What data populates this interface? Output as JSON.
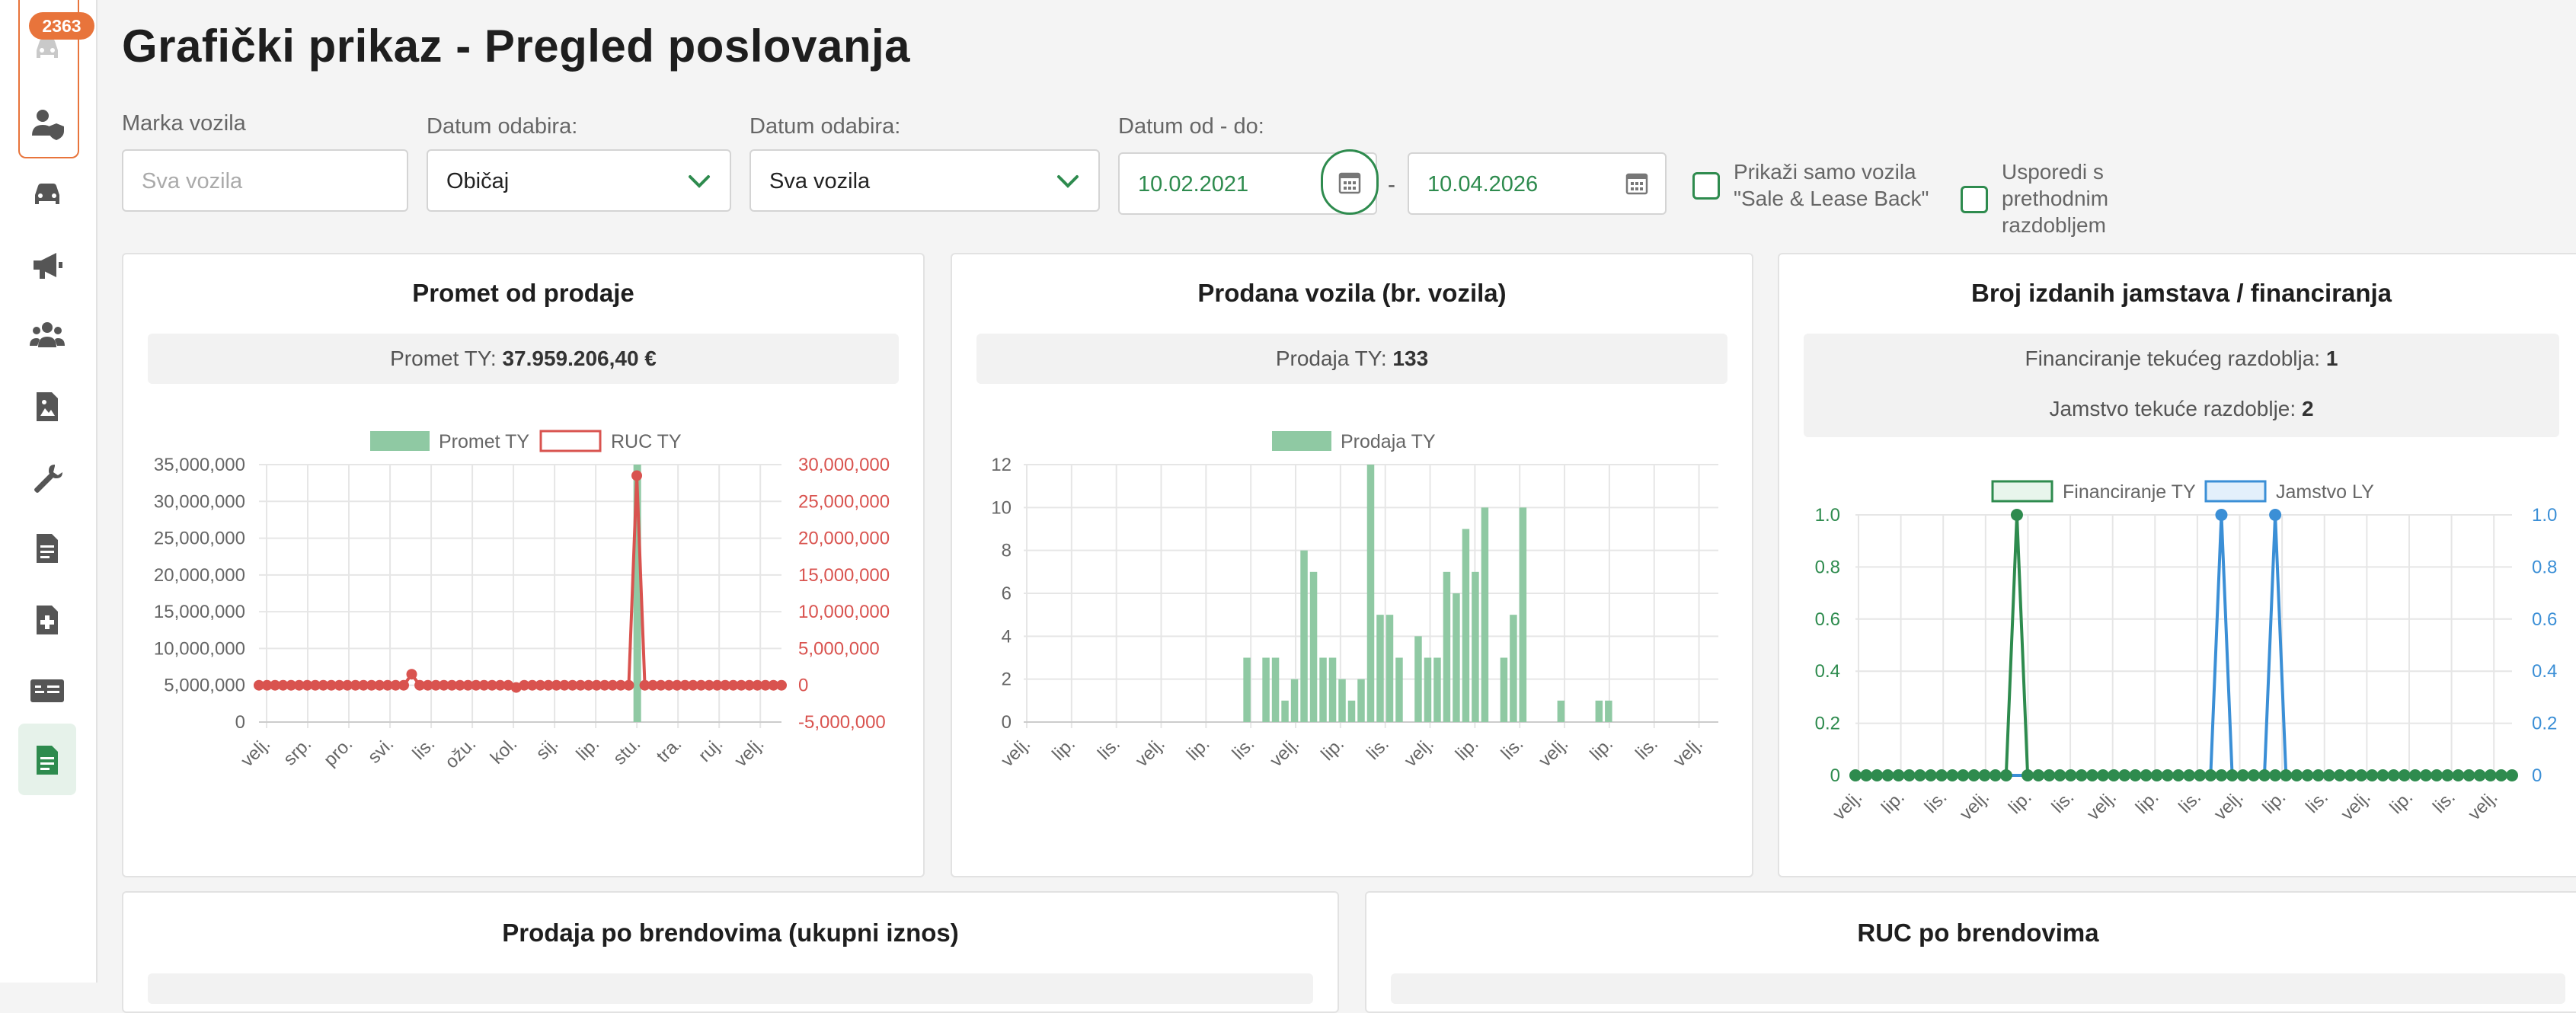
{
  "sidebar": {
    "badge": "2363",
    "icons": [
      "car-icon",
      "user-shield-icon",
      "car-front-icon",
      "megaphone-icon",
      "users-icon",
      "image-file-icon",
      "wrench-icon",
      "document-icon",
      "file-plus-icon",
      "id-card-icon",
      "report-icon"
    ]
  },
  "page": {
    "title": "Grafički prikaz - Pregled poslovanja"
  },
  "filters": {
    "brand_label": "Marka vozila",
    "brand_placeholder": "Sva vozila",
    "date_pick_label_1": "Datum odabira:",
    "date_pick_value_1": "Običaj",
    "date_pick_label_2": "Datum odabira:",
    "date_pick_value_2": "Sva vozila",
    "range_label": "Datum od - do:",
    "date_from": "10.02.2021",
    "date_separator": "-",
    "date_to": "10.04.2026",
    "checkbox_slb": "Prikaži samo vozila \"Sale & Lease Back\"",
    "checkbox_compare": "Usporedi s prethodnim razdobljem"
  },
  "cards": {
    "revenue": {
      "title": "Promet od prodaje",
      "summary_label": "Promet TY:",
      "summary_value": "37.959.206,40  €"
    },
    "sold": {
      "title": "Prodana vozila (br. vozila)",
      "summary_label": "Prodaja TY:",
      "summary_value": "133"
    },
    "guarantees": {
      "title": "Broj izdanih jamstava / financiranja",
      "summary1_label": "Financiranje tekućeg razdoblja:",
      "summary1_value": "1",
      "summary2_label": "Jamstvo tekuće razdoblje:",
      "summary2_value": "2"
    },
    "brand_sales": {
      "title": "Prodaja po brendovima (ukupni iznos)"
    },
    "brand_ruc": {
      "title": "RUC po brendovima"
    }
  },
  "colors": {
    "accent": "#2e8b4e",
    "badge": "#e8743b",
    "bar_green": "#8fc9a3",
    "ruc_red": "#d9534f",
    "guarantee_blue": "#3b8fd6"
  },
  "chart_data": [
    {
      "type": "bar",
      "title": "",
      "series": [
        {
          "name": "Promet TY",
          "axis": "left",
          "kind": "bar",
          "peak_value": 35000000,
          "peak_position_fraction": 0.724
        },
        {
          "name": "RUC TY",
          "axis": "right",
          "kind": "line",
          "baseline": 0,
          "bump_value": 1500000,
          "bump_position_fraction": 0.29,
          "dip_value": -300000,
          "dip_position_fraction": 0.494,
          "peak_value": 28500000,
          "peak_position_fraction": 0.724
        }
      ],
      "x_tick_labels": [
        "velj.",
        "srp.",
        "pro.",
        "svi.",
        "lis.",
        "ožu.",
        "kol.",
        "sij.",
        "lip.",
        "stu.",
        "tra.",
        "ruj.",
        "velj."
      ],
      "y_left_ticks": [
        "35,000,000",
        "30,000,000",
        "25,000,000",
        "20,000,000",
        "15,000,000",
        "10,000,000",
        "5,000,000",
        "0"
      ],
      "y_left_range": [
        0,
        35000000
      ],
      "y_right_ticks": [
        "30,000,000",
        "25,000,000",
        "20,000,000",
        "15,000,000",
        "10,000,000",
        "5,000,000",
        "0",
        "-5,000,000"
      ],
      "y_right_range": [
        -5000000,
        30000000
      ],
      "legend": "top"
    },
    {
      "type": "bar",
      "title": "",
      "series": [
        {
          "name": "Prodaja TY",
          "values": [
            0,
            0,
            0,
            0,
            0,
            0,
            0,
            0,
            0,
            0,
            0,
            0,
            0,
            0,
            0,
            0,
            0,
            0,
            0,
            0,
            0,
            0,
            0,
            3,
            0,
            3,
            3,
            1,
            2,
            8,
            7,
            3,
            3,
            2,
            1,
            2,
            12,
            5,
            5,
            3,
            0,
            4,
            3,
            3,
            7,
            6,
            9,
            7,
            10,
            0,
            3,
            5,
            10,
            0,
            0,
            0,
            1,
            0,
            0,
            0,
            1,
            1,
            0,
            0,
            0,
            0,
            0,
            0,
            0,
            0,
            0,
            0,
            0
          ]
        }
      ],
      "x_tick_labels": [
        "velj.",
        "lip.",
        "lis.",
        "velj.",
        "lip.",
        "lis.",
        "velj.",
        "lip.",
        "lis.",
        "velj.",
        "lip.",
        "lis.",
        "velj.",
        "lip.",
        "lis.",
        "velj."
      ],
      "y_ticks": [
        "12",
        "10",
        "8",
        "6",
        "4",
        "2",
        "0"
      ],
      "y_range": [
        0,
        12
      ],
      "legend": "top"
    },
    {
      "type": "line",
      "title": "",
      "series": [
        {
          "name": "Financiranje TY",
          "axis": "left",
          "points": 62,
          "spikes": [
            {
              "index": 15,
              "value": 1
            }
          ]
        },
        {
          "name": "Jamstvo LY",
          "axis": "right",
          "points": 62,
          "spikes": [
            {
              "index": 34,
              "value": 1
            },
            {
              "index": 39,
              "value": 1
            }
          ]
        }
      ],
      "x_tick_labels": [
        "velj.",
        "lip.",
        "lis.",
        "velj.",
        "lip.",
        "lis.",
        "velj.",
        "lip.",
        "lis.",
        "velj.",
        "lip.",
        "lis.",
        "velj.",
        "lip.",
        "lis.",
        "velj."
      ],
      "y_left_ticks": [
        "1.0",
        "0.8",
        "0.6",
        "0.4",
        "0.2",
        "0"
      ],
      "y_right_ticks": [
        "1.0",
        "0.8",
        "0.6",
        "0.4",
        "0.2",
        "0"
      ],
      "y_range": [
        0,
        1
      ],
      "legend": "top"
    }
  ]
}
